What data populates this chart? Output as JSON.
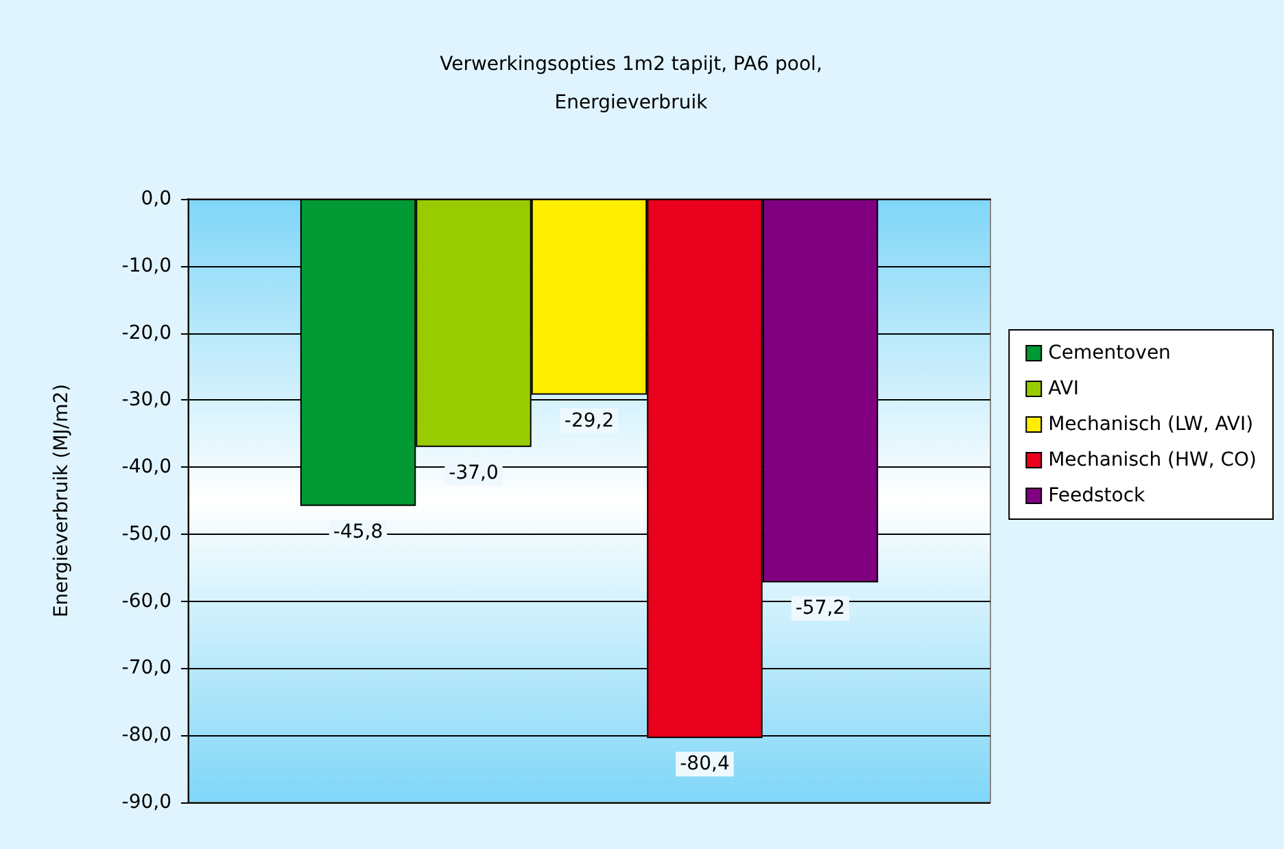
{
  "chart_data": {
    "type": "bar",
    "title": "Verwerkingsopties 1m2 tapijt, PA6 pool,\nEnergieverbruik",
    "ylabel": "Energieverbruik (MJ/m2)",
    "categories": [
      null
    ],
    "series": [
      {
        "name": "Cementoven",
        "color": "#009933",
        "values": [
          -45.8
        ],
        "value_labels": [
          "-45,8"
        ]
      },
      {
        "name": "AVI",
        "color": "#99cc00",
        "values": [
          -37.0
        ],
        "value_labels": [
          "-37,0"
        ]
      },
      {
        "name": "Mechanisch (LW, AVI)",
        "color": "#ffee00",
        "values": [
          -29.2
        ],
        "value_labels": [
          "-29,2"
        ]
      },
      {
        "name": "Mechanisch (HW, CO)",
        "color": "#e8001c",
        "values": [
          -80.4
        ],
        "value_labels": [
          "-80,4"
        ]
      },
      {
        "name": "Feedstock",
        "color": "#800080",
        "values": [
          -57.2
        ],
        "value_labels": [
          "-57,2"
        ]
      }
    ],
    "ylim": [
      -90,
      0
    ],
    "yticks": [
      {
        "value": -90,
        "label": "-90,0"
      },
      {
        "value": -80,
        "label": "-80,0"
      },
      {
        "value": -70,
        "label": "-70,0"
      },
      {
        "value": -60,
        "label": "-60,0"
      },
      {
        "value": -50,
        "label": "-50,0"
      },
      {
        "value": -40,
        "label": "-40,0"
      },
      {
        "value": -30,
        "label": "-30,0"
      },
      {
        "value": -20,
        "label": "-20,0"
      },
      {
        "value": -10,
        "label": "-10,0"
      },
      {
        "value": 0,
        "label": "0,0"
      }
    ],
    "grid": "y",
    "legend": "right"
  }
}
